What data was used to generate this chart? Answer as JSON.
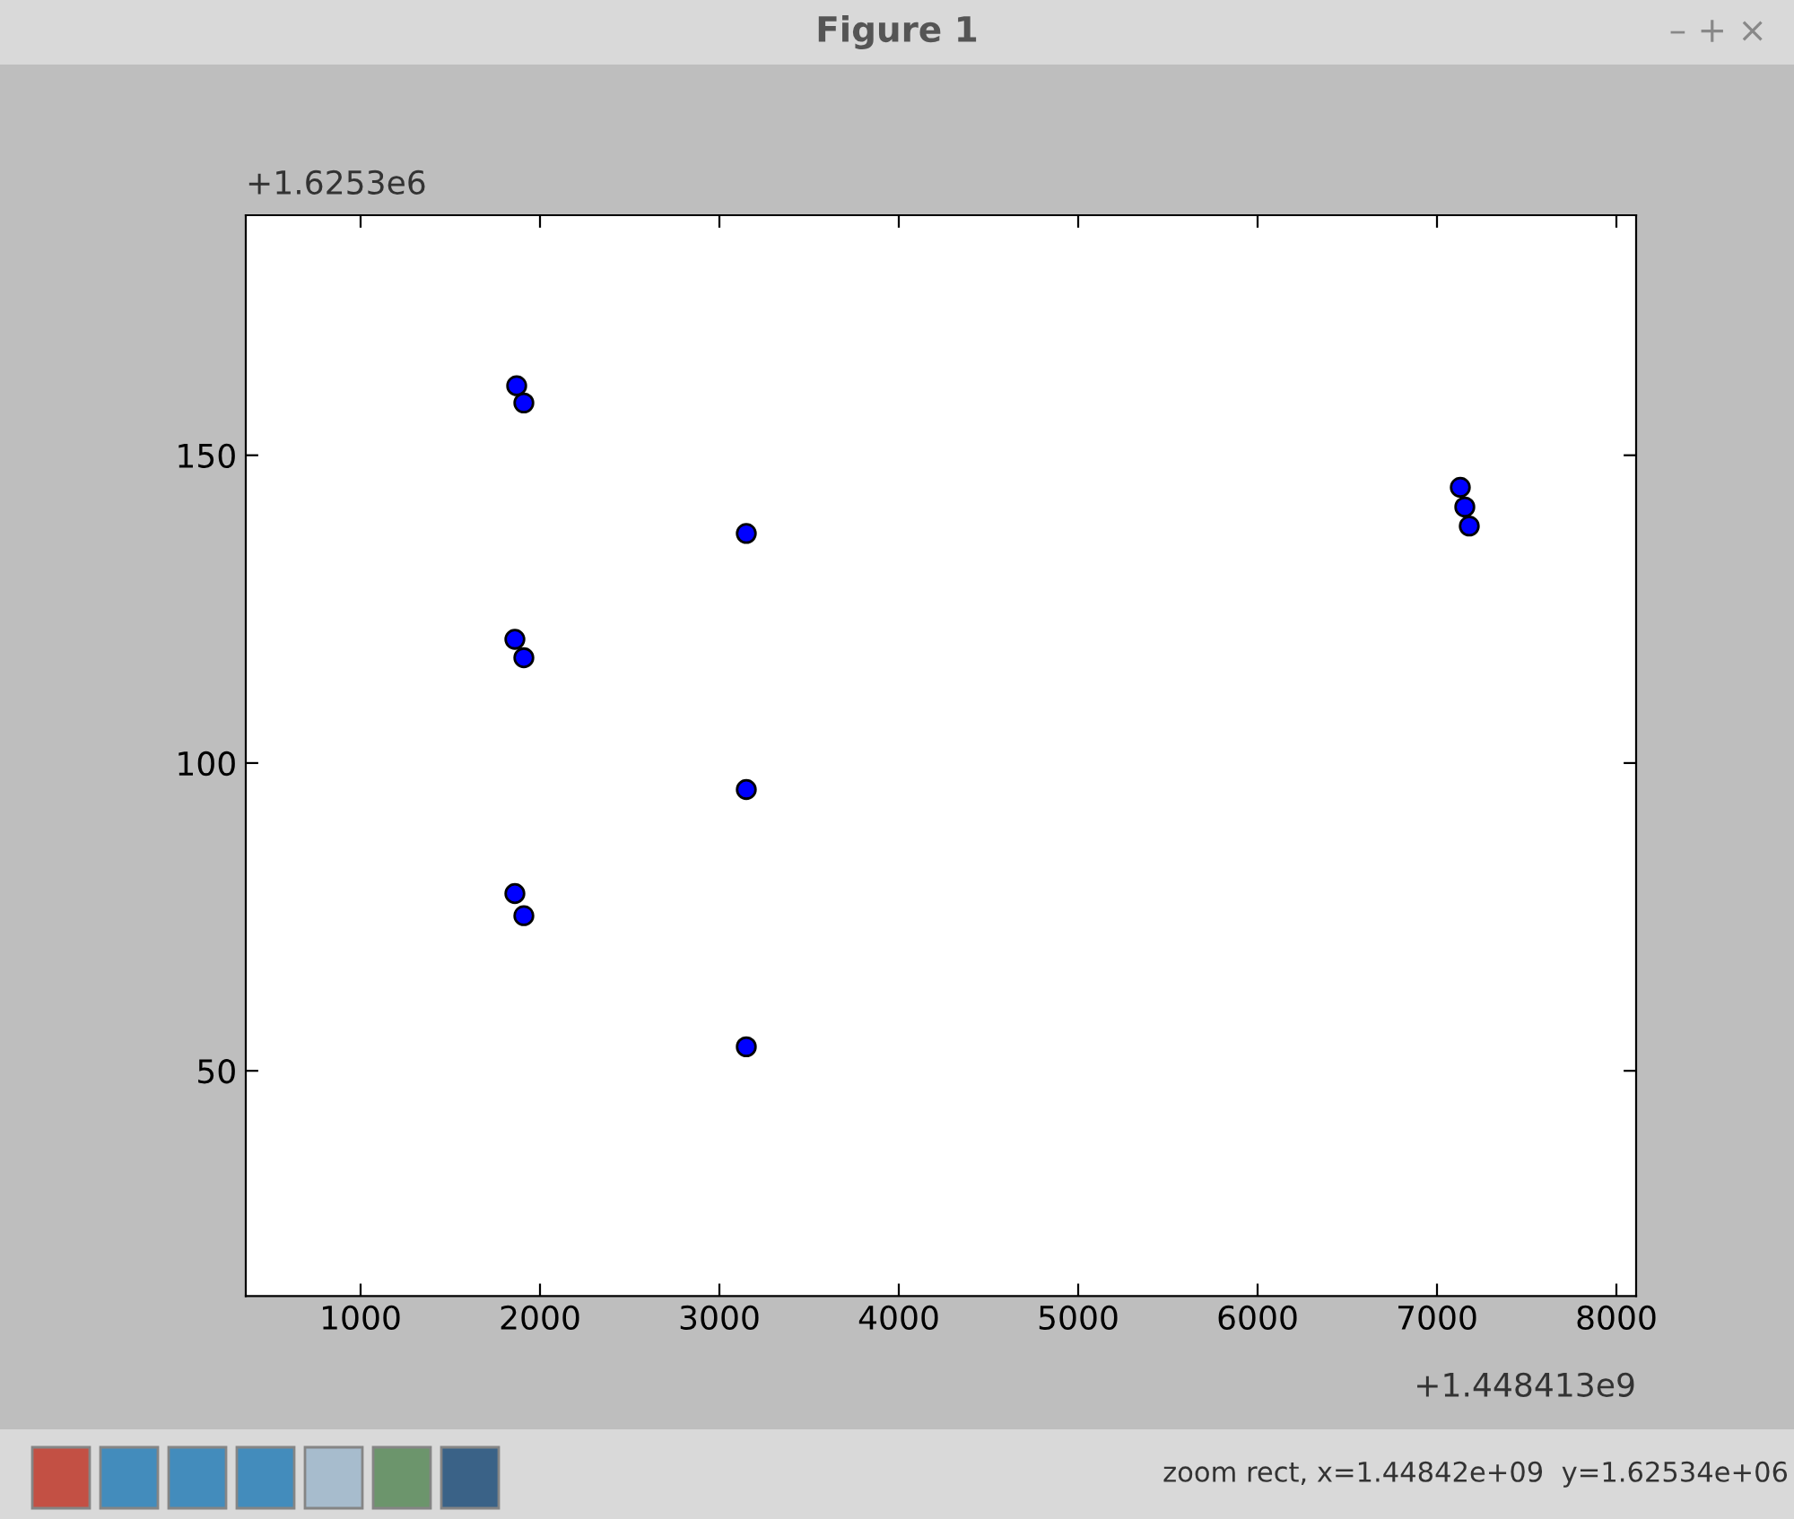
{
  "chart_data": {
    "type": "scatter",
    "title": "Figure 1",
    "x": [
      1870,
      1910,
      1860,
      1910,
      1860,
      1910,
      3150,
      3150,
      3150,
      7130,
      7155,
      7180
    ],
    "values": [
      161.3,
      158.5,
      120.1,
      117.1,
      78.8,
      75.2,
      137.3,
      95.7,
      53.9,
      144.8,
      141.6,
      138.5
    ],
    "color": "#0000ff",
    "marker": "circle",
    "grid": false,
    "xlim": [
      360,
      8110
    ],
    "ylim": [
      13.4,
      189
    ],
    "xticks": [
      1000,
      2000,
      3000,
      4000,
      5000,
      6000,
      7000,
      8000
    ],
    "yticks": [
      50,
      100,
      150
    ],
    "annotations": [
      "+1.6253e6",
      "+1.448413e9",
      "– + ×",
      "zoom rect, x=1.44842e+09  y=1.62534e+06"
    ]
  }
}
